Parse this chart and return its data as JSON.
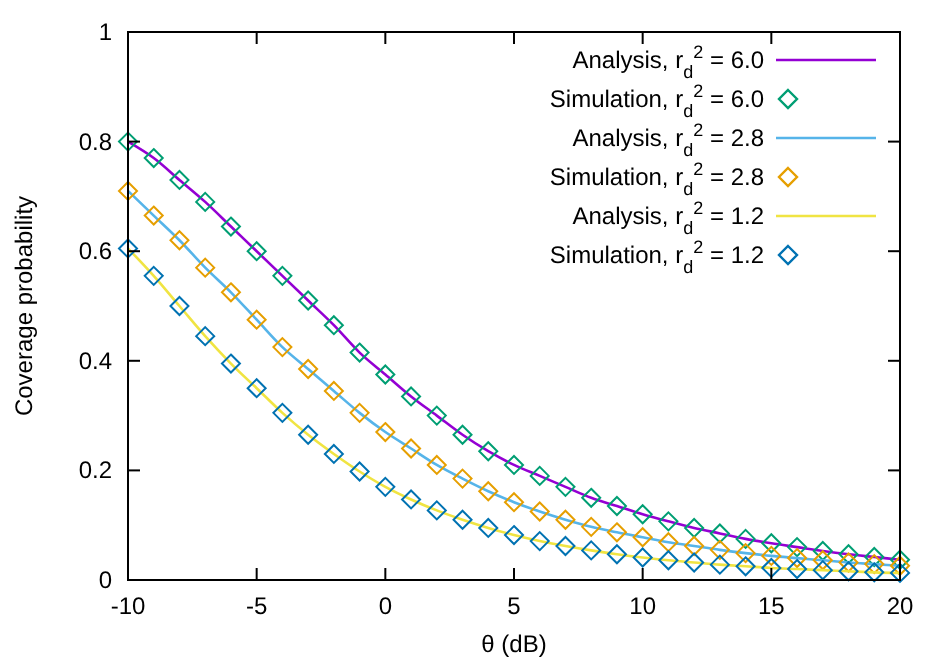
{
  "chart_data": {
    "type": "line",
    "xlabel": "θ (dB)",
    "ylabel": "Coverage probability",
    "xlim": [
      -10,
      20
    ],
    "ylim": [
      0,
      1
    ],
    "xticks": [
      -10,
      -5,
      0,
      5,
      10,
      15,
      20
    ],
    "yticks": [
      0,
      0.2,
      0.4,
      0.6,
      0.8,
      1
    ],
    "grid": false,
    "legend": "top right",
    "x": [
      -10,
      -9,
      -8,
      -7,
      -6,
      -5,
      -4,
      -3,
      -2,
      -1,
      0,
      1,
      2,
      3,
      4,
      5,
      6,
      7,
      8,
      9,
      10,
      11,
      12,
      13,
      14,
      15,
      16,
      17,
      18,
      19,
      20
    ],
    "series": [
      {
        "name": "Analysis, r$_{d}$$^{2}$ = 6.0",
        "marker": "none",
        "color": "#9400d3",
        "values": [
          0.8,
          0.77,
          0.73,
          0.69,
          0.645,
          0.6,
          0.555,
          0.51,
          0.465,
          0.415,
          0.375,
          0.335,
          0.3,
          0.265,
          0.235,
          0.21,
          0.19,
          0.17,
          0.15,
          0.135,
          0.12,
          0.107,
          0.095,
          0.085,
          0.075,
          0.067,
          0.06,
          0.053,
          0.047,
          0.042,
          0.037
        ]
      },
      {
        "name": "Simulation, r$_{d}$$^{2}$ = 6.0",
        "type": "scatter",
        "marker": "diamond",
        "color": "#009e73",
        "values": [
          0.8,
          0.77,
          0.73,
          0.69,
          0.645,
          0.6,
          0.555,
          0.51,
          0.465,
          0.415,
          0.375,
          0.335,
          0.3,
          0.265,
          0.235,
          0.21,
          0.19,
          0.17,
          0.15,
          0.135,
          0.12,
          0.107,
          0.095,
          0.085,
          0.075,
          0.067,
          0.06,
          0.053,
          0.047,
          0.042,
          0.037
        ]
      },
      {
        "name": "Analysis, r$_{d}$$^{2}$ = 2.8",
        "marker": "none",
        "color": "#56b4e9",
        "values": [
          0.71,
          0.665,
          0.62,
          0.57,
          0.525,
          0.475,
          0.425,
          0.385,
          0.345,
          0.305,
          0.27,
          0.24,
          0.21,
          0.185,
          0.162,
          0.142,
          0.125,
          0.11,
          0.097,
          0.087,
          0.078,
          0.069,
          0.062,
          0.055,
          0.049,
          0.044,
          0.04,
          0.036,
          0.032,
          0.029,
          0.026
        ]
      },
      {
        "name": "Simulation, r$_{d}$$^{2}$ = 2.8",
        "type": "scatter",
        "marker": "diamond",
        "color": "#e69f00",
        "values": [
          0.71,
          0.665,
          0.62,
          0.57,
          0.525,
          0.475,
          0.425,
          0.385,
          0.345,
          0.305,
          0.27,
          0.24,
          0.21,
          0.185,
          0.162,
          0.142,
          0.125,
          0.11,
          0.097,
          0.087,
          0.078,
          0.069,
          0.062,
          0.055,
          0.049,
          0.044,
          0.04,
          0.036,
          0.032,
          0.029,
          0.026
        ]
      },
      {
        "name": "Analysis, r$_{d}$$^{2}$ = 1.2",
        "marker": "none",
        "color": "#f0e442",
        "values": [
          0.605,
          0.555,
          0.5,
          0.445,
          0.395,
          0.35,
          0.305,
          0.265,
          0.23,
          0.198,
          0.17,
          0.147,
          0.127,
          0.11,
          0.095,
          0.082,
          0.071,
          0.062,
          0.054,
          0.047,
          0.041,
          0.036,
          0.032,
          0.028,
          0.025,
          0.022,
          0.02,
          0.018,
          0.016,
          0.014,
          0.013
        ]
      },
      {
        "name": "Simulation, r$_{d}$$^{2}$ = 1.2",
        "type": "scatter",
        "marker": "diamond",
        "color": "#0072b2",
        "values": [
          0.605,
          0.555,
          0.5,
          0.445,
          0.395,
          0.35,
          0.305,
          0.265,
          0.23,
          0.198,
          0.17,
          0.147,
          0.127,
          0.11,
          0.095,
          0.082,
          0.071,
          0.062,
          0.054,
          0.047,
          0.041,
          0.036,
          0.032,
          0.028,
          0.025,
          0.022,
          0.02,
          0.018,
          0.016,
          0.014,
          0.013
        ]
      }
    ]
  }
}
